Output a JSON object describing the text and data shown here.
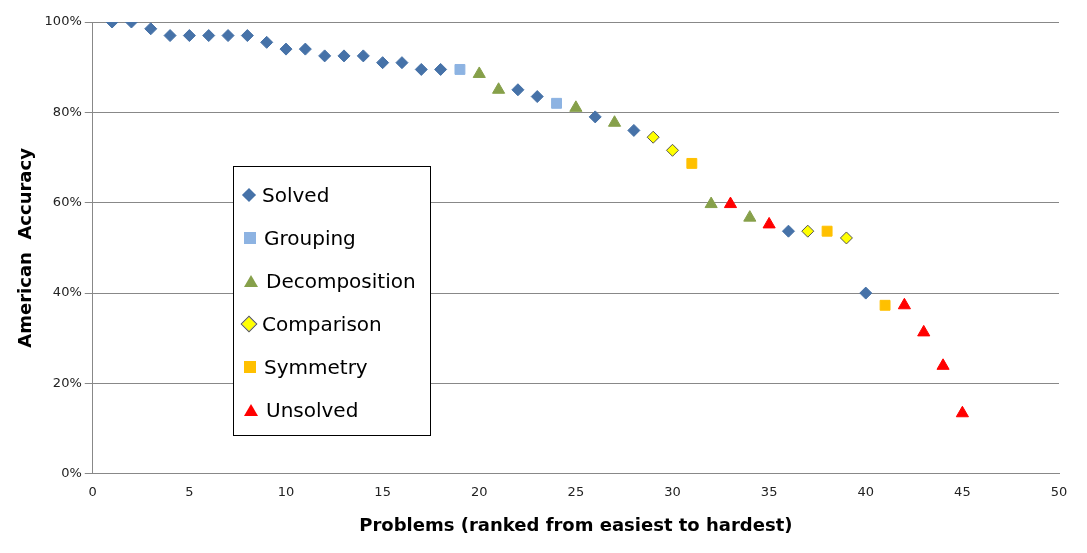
{
  "chart_data": {
    "type": "scatter",
    "xlabel": "Problems (ranked from easiest to hardest)",
    "ylabel": "American  Accuracy",
    "xlim": [
      0,
      50
    ],
    "xticks": [
      0,
      5,
      10,
      15,
      20,
      25,
      30,
      35,
      40,
      45,
      50
    ],
    "ylim": [
      0,
      100
    ],
    "yticks": [
      {
        "value": 0,
        "label": "0%"
      },
      {
        "value": 20,
        "label": "20%"
      },
      {
        "value": 40,
        "label": "40%"
      },
      {
        "value": 60,
        "label": "60%"
      },
      {
        "value": 80,
        "label": "80%"
      },
      {
        "value": 100,
        "label": "100%"
      }
    ],
    "grid": "y",
    "legend": "left",
    "series": [
      {
        "name": "Solved",
        "color": "#4672a8",
        "marker": "diamond",
        "x": [
          1,
          2,
          3,
          4,
          5,
          6,
          7,
          8,
          9,
          10,
          11,
          12,
          13,
          14,
          15,
          16,
          17,
          18,
          22,
          23,
          26,
          28,
          36,
          40
        ],
        "values": [
          100,
          100,
          98.5,
          97,
          97,
          97,
          97,
          97,
          95.5,
          94,
          94,
          92.5,
          92.5,
          92.5,
          91,
          91,
          89.5,
          89.5,
          85,
          83.5,
          79,
          76,
          53.7,
          40
        ]
      },
      {
        "name": "Grouping",
        "color": "#8db3e2",
        "marker": "square",
        "x": [
          19,
          24
        ],
        "values": [
          89.5,
          82
        ]
      },
      {
        "name": "Decomposition",
        "color": "#86a04a",
        "marker": "triangle",
        "x": [
          20,
          21,
          25,
          27,
          32,
          34
        ],
        "values": [
          88.5,
          85,
          81,
          77.7,
          59.7,
          56.7
        ]
      },
      {
        "name": "Comparison",
        "color": "#ffff00",
        "marker": "diamond",
        "x": [
          29,
          30,
          37,
          39
        ],
        "values": [
          74.5,
          71.6,
          53.7,
          52.2
        ]
      },
      {
        "name": "Symmetry",
        "color": "#ffc000",
        "marker": "square",
        "x": [
          31,
          38,
          41
        ],
        "values": [
          68.7,
          53.7,
          37.3
        ]
      },
      {
        "name": "Unsolved",
        "color": "#ff0000",
        "marker": "triangle",
        "x": [
          33,
          35,
          42,
          43,
          44,
          45
        ],
        "values": [
          59.7,
          55.2,
          37.3,
          31.3,
          23.9,
          13.4
        ]
      }
    ]
  }
}
